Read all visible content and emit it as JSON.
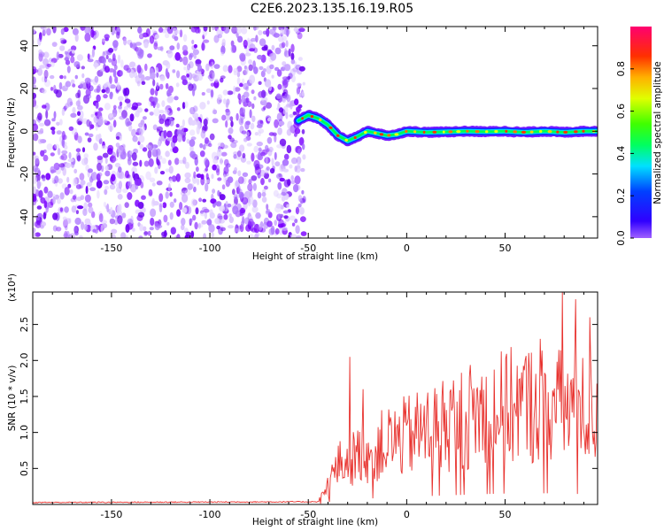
{
  "title": "C2E6.2023.135.16.19.R05",
  "chart_data": [
    {
      "type": "heatmap",
      "xlabel": "Height of straight line (km)",
      "ylabel": "Frequency (Hz)",
      "xlim": [
        -190,
        97
      ],
      "ylim": [
        -50,
        49
      ],
      "xticks": [
        -150,
        -100,
        -50,
        0,
        50
      ],
      "yticks": [
        -40,
        -20,
        0,
        20,
        40
      ],
      "colorbar": {
        "label": "Normalized spectral amplitude",
        "range": [
          0,
          1
        ],
        "ticks": [
          "0.0",
          "0.2",
          "0.4",
          "0.6",
          "0.8"
        ],
        "tick_values": [
          0,
          0.2,
          0.4,
          0.6,
          0.8
        ]
      },
      "noise_region_x": [
        -190,
        -52
      ],
      "doppler_trace": {
        "x": [
          -55,
          -50,
          -45,
          -40,
          -35,
          -30,
          -25,
          -20,
          -15,
          -10,
          -5,
          0,
          10,
          20,
          30,
          40,
          50,
          60,
          70,
          80,
          90,
          97
        ],
        "y": [
          5,
          7.5,
          6,
          3,
          -2,
          -4.5,
          -2.5,
          0,
          -1,
          -2,
          -1.5,
          0,
          -0.5,
          -0.3,
          0,
          -0.2,
          0,
          -0.5,
          0,
          -0.5,
          0,
          0
        ]
      }
    },
    {
      "type": "line",
      "xlabel": "Height of straight line (km)",
      "ylabel": "SNR (10 * v/v)",
      "scale_label": "(x10⁴)",
      "xlim": [
        -190,
        97
      ],
      "ylim": [
        0,
        2.95
      ],
      "xticks": [
        -150,
        -100,
        -50,
        0,
        50
      ],
      "yticks": [
        0.5,
        1.0,
        1.5,
        2.0,
        2.5
      ],
      "ytick_labels": [
        "0.5",
        "1.0",
        "1.5",
        "2.0",
        "2.5"
      ],
      "color": "#e8322e",
      "envelope": {
        "x": [
          -190,
          -45,
          -40,
          -35,
          -30,
          -20,
          -10,
          0,
          10,
          20,
          30,
          40,
          50,
          60,
          70,
          80,
          90,
          97
        ],
        "y": [
          0.02,
          0.03,
          0.3,
          0.6,
          0.7,
          0.8,
          0.95,
          1.05,
          1.15,
          1.25,
          1.35,
          1.45,
          1.5,
          1.55,
          1.55,
          1.5,
          1.45,
          1.4
        ]
      },
      "peaks": [
        {
          "x": -29,
          "y": 2.05
        },
        {
          "x": -22,
          "y": 1.6
        },
        {
          "x": 68,
          "y": 2.3
        },
        {
          "x": 79,
          "y": 2.95
        },
        {
          "x": 86,
          "y": 2.85
        },
        {
          "x": 93,
          "y": 2.6
        }
      ]
    }
  ]
}
